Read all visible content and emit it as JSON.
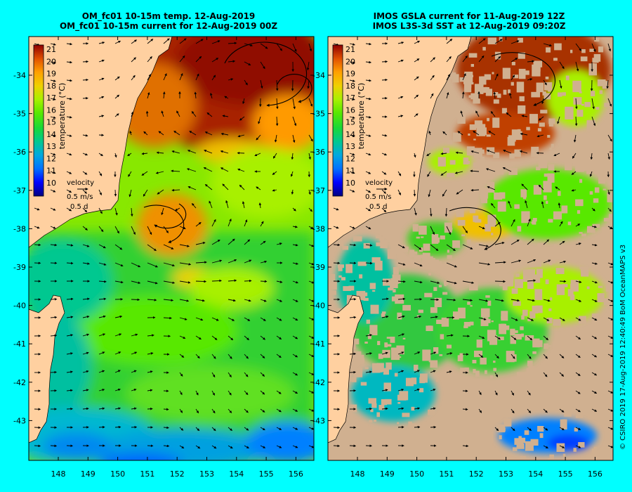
{
  "left_panel": {
    "title_line1": "OM_fc01 10-15m temp. 12-Aug-2019",
    "title_line2": "OM_fc01 10-15m current for 12-Aug-2019 00Z"
  },
  "right_panel": {
    "title_line1": "IMOS GSLA current for 11-Aug-2019 12Z",
    "title_line2": "IMOS L3S-3d SST at 12-Aug-2019 09:20Z"
  },
  "colorbar": {
    "ticks": [
      "10",
      "11",
      "12",
      "13",
      "14",
      "15",
      "16",
      "17",
      "18",
      "19",
      "20",
      "21"
    ],
    "label": "temperature (°C)",
    "colors": [
      "#000080",
      "#0000ff",
      "#0070ff",
      "#00a8e0",
      "#00c890",
      "#18d838",
      "#58e800",
      "#a8f000",
      "#f0d000",
      "#ffa000",
      "#e05000",
      "#a01800",
      "#800000"
    ]
  },
  "velocity_key": {
    "title": "velocity",
    "speed": "0.5 m/s",
    "duration": "0.5 d"
  },
  "axes": {
    "lat_ticks": [
      "-34",
      "-35",
      "-36",
      "-37",
      "-38",
      "-39",
      "-40",
      "-41",
      "-42",
      "-43"
    ],
    "lon_ticks": [
      "148",
      "149",
      "150",
      "151",
      "152",
      "153",
      "154",
      "155",
      "156"
    ]
  },
  "credit": "© CSIRO 2019   17-Aug-2019 12:40:49 BoM OceanMAPS v3",
  "colors": {
    "background": "#00ffff",
    "land": "#ffd0a0",
    "cloud_mask": "#d0b090"
  }
}
